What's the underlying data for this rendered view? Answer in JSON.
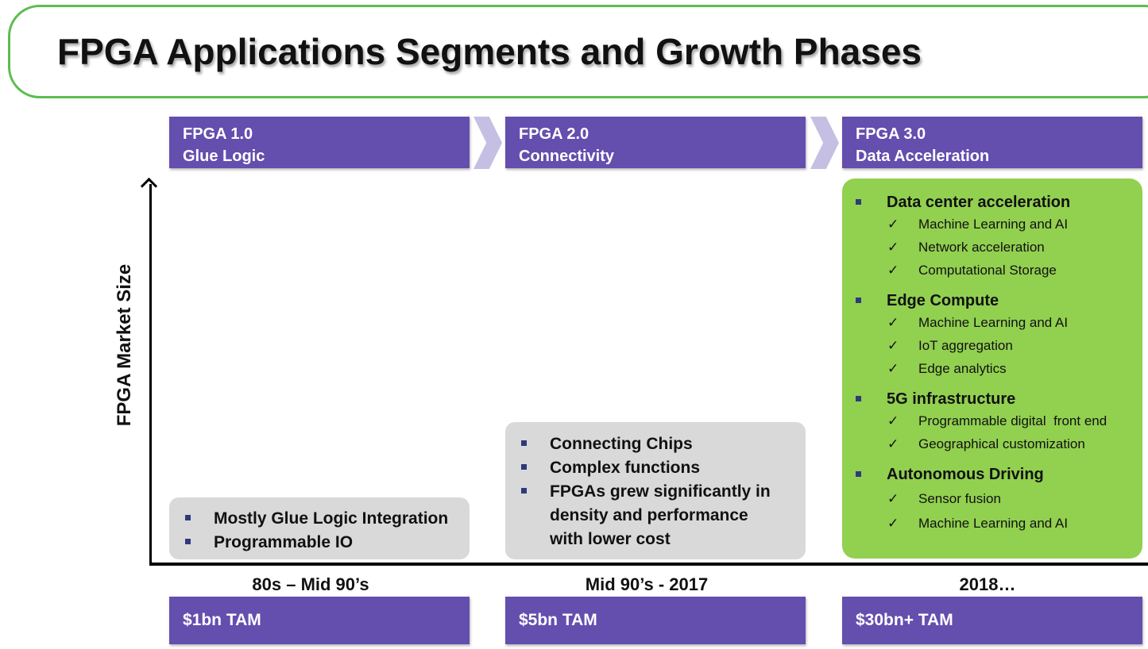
{
  "title": "FPGA Applications Segments and Growth Phases",
  "y_axis_label": "FPGA Market Size",
  "phases": [
    {
      "version": "FPGA 1.0",
      "name": "Glue Logic",
      "era": "80s – Mid 90’s",
      "tam": "$1bn TAM",
      "bullets": [
        "Mostly Glue Logic Integration",
        "Programmable IO"
      ]
    },
    {
      "version": "FPGA 2.0",
      "name": "Connectivity",
      "era": "Mid 90’s - 2017",
      "tam": "$5bn TAM",
      "bullets": [
        "Connecting Chips",
        "Complex functions",
        "FPGAs grew significantly in density and performance with lower cost"
      ]
    },
    {
      "version": "FPGA 3.0",
      "name": "Data Acceleration",
      "era": "2018…",
      "tam": "$30bn+ TAM",
      "segments": [
        {
          "title": "Data center acceleration",
          "items": [
            "Machine Learning and AI",
            "Network acceleration",
            "Computational Storage"
          ]
        },
        {
          "title": "Edge Compute",
          "items": [
            "Machine Learning and AI",
            "IoT aggregation",
            "Edge analytics"
          ]
        },
        {
          "title": "5G infrastructure",
          "items": [
            "Programmable digital  front end",
            "Geographical customization"
          ]
        },
        {
          "title": "Autonomous Driving",
          "items": [
            "Sensor fusion",
            "Machine Learning and AI"
          ]
        }
      ]
    }
  ],
  "colors": {
    "phase_header": "#644eae",
    "chevron": "#c5bfe3",
    "title_frame": "#5cbd4f",
    "gray_box": "#d9d9d9",
    "green_box": "#92d050"
  },
  "icons": {
    "bullet": "square-bullet-icon",
    "check": "checkmark-icon"
  }
}
